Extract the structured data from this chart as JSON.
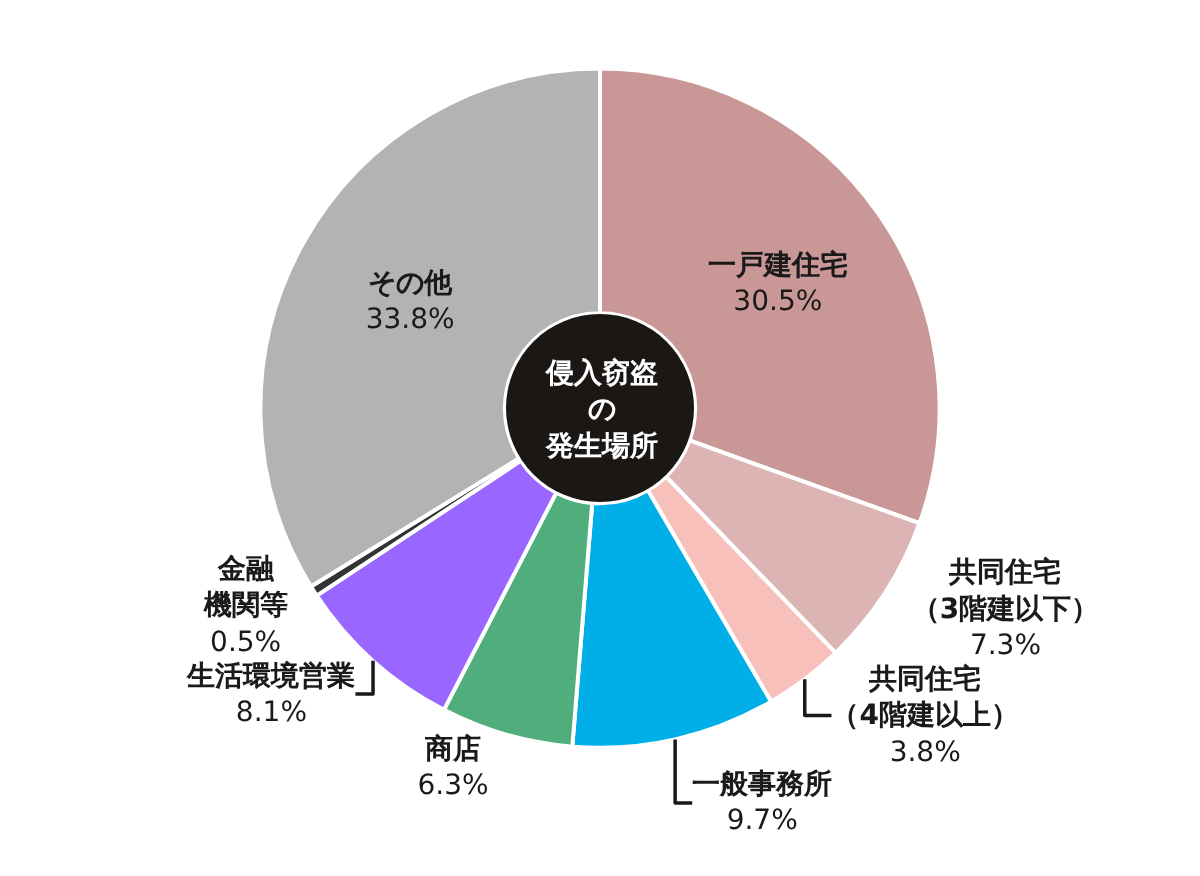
{
  "chart_data": {
    "type": "donut",
    "title": "侵入窃盗の発生場所",
    "categories": [
      "一戸建住宅",
      "共同住宅（3階建以下）",
      "共同住宅（4階建以上）",
      "一般事務所",
      "商店",
      "生活環境営業",
      "金融機関等",
      "その他"
    ],
    "values": [
      30.5,
      7.3,
      3.8,
      9.7,
      6.3,
      8.1,
      0.5,
      33.8
    ],
    "value_labels": [
      "30.5%",
      "7.3%",
      "3.8%",
      "9.7%",
      "6.3%",
      "8.1%",
      "0.5%",
      "33.8%"
    ],
    "colors": [
      "#c99896",
      "#dcb4b4",
      "#f7c0bb",
      "#00aee8",
      "#4fae7c",
      "#9966ff",
      "#333333",
      "#b3b3b3"
    ],
    "legend": false
  }
}
